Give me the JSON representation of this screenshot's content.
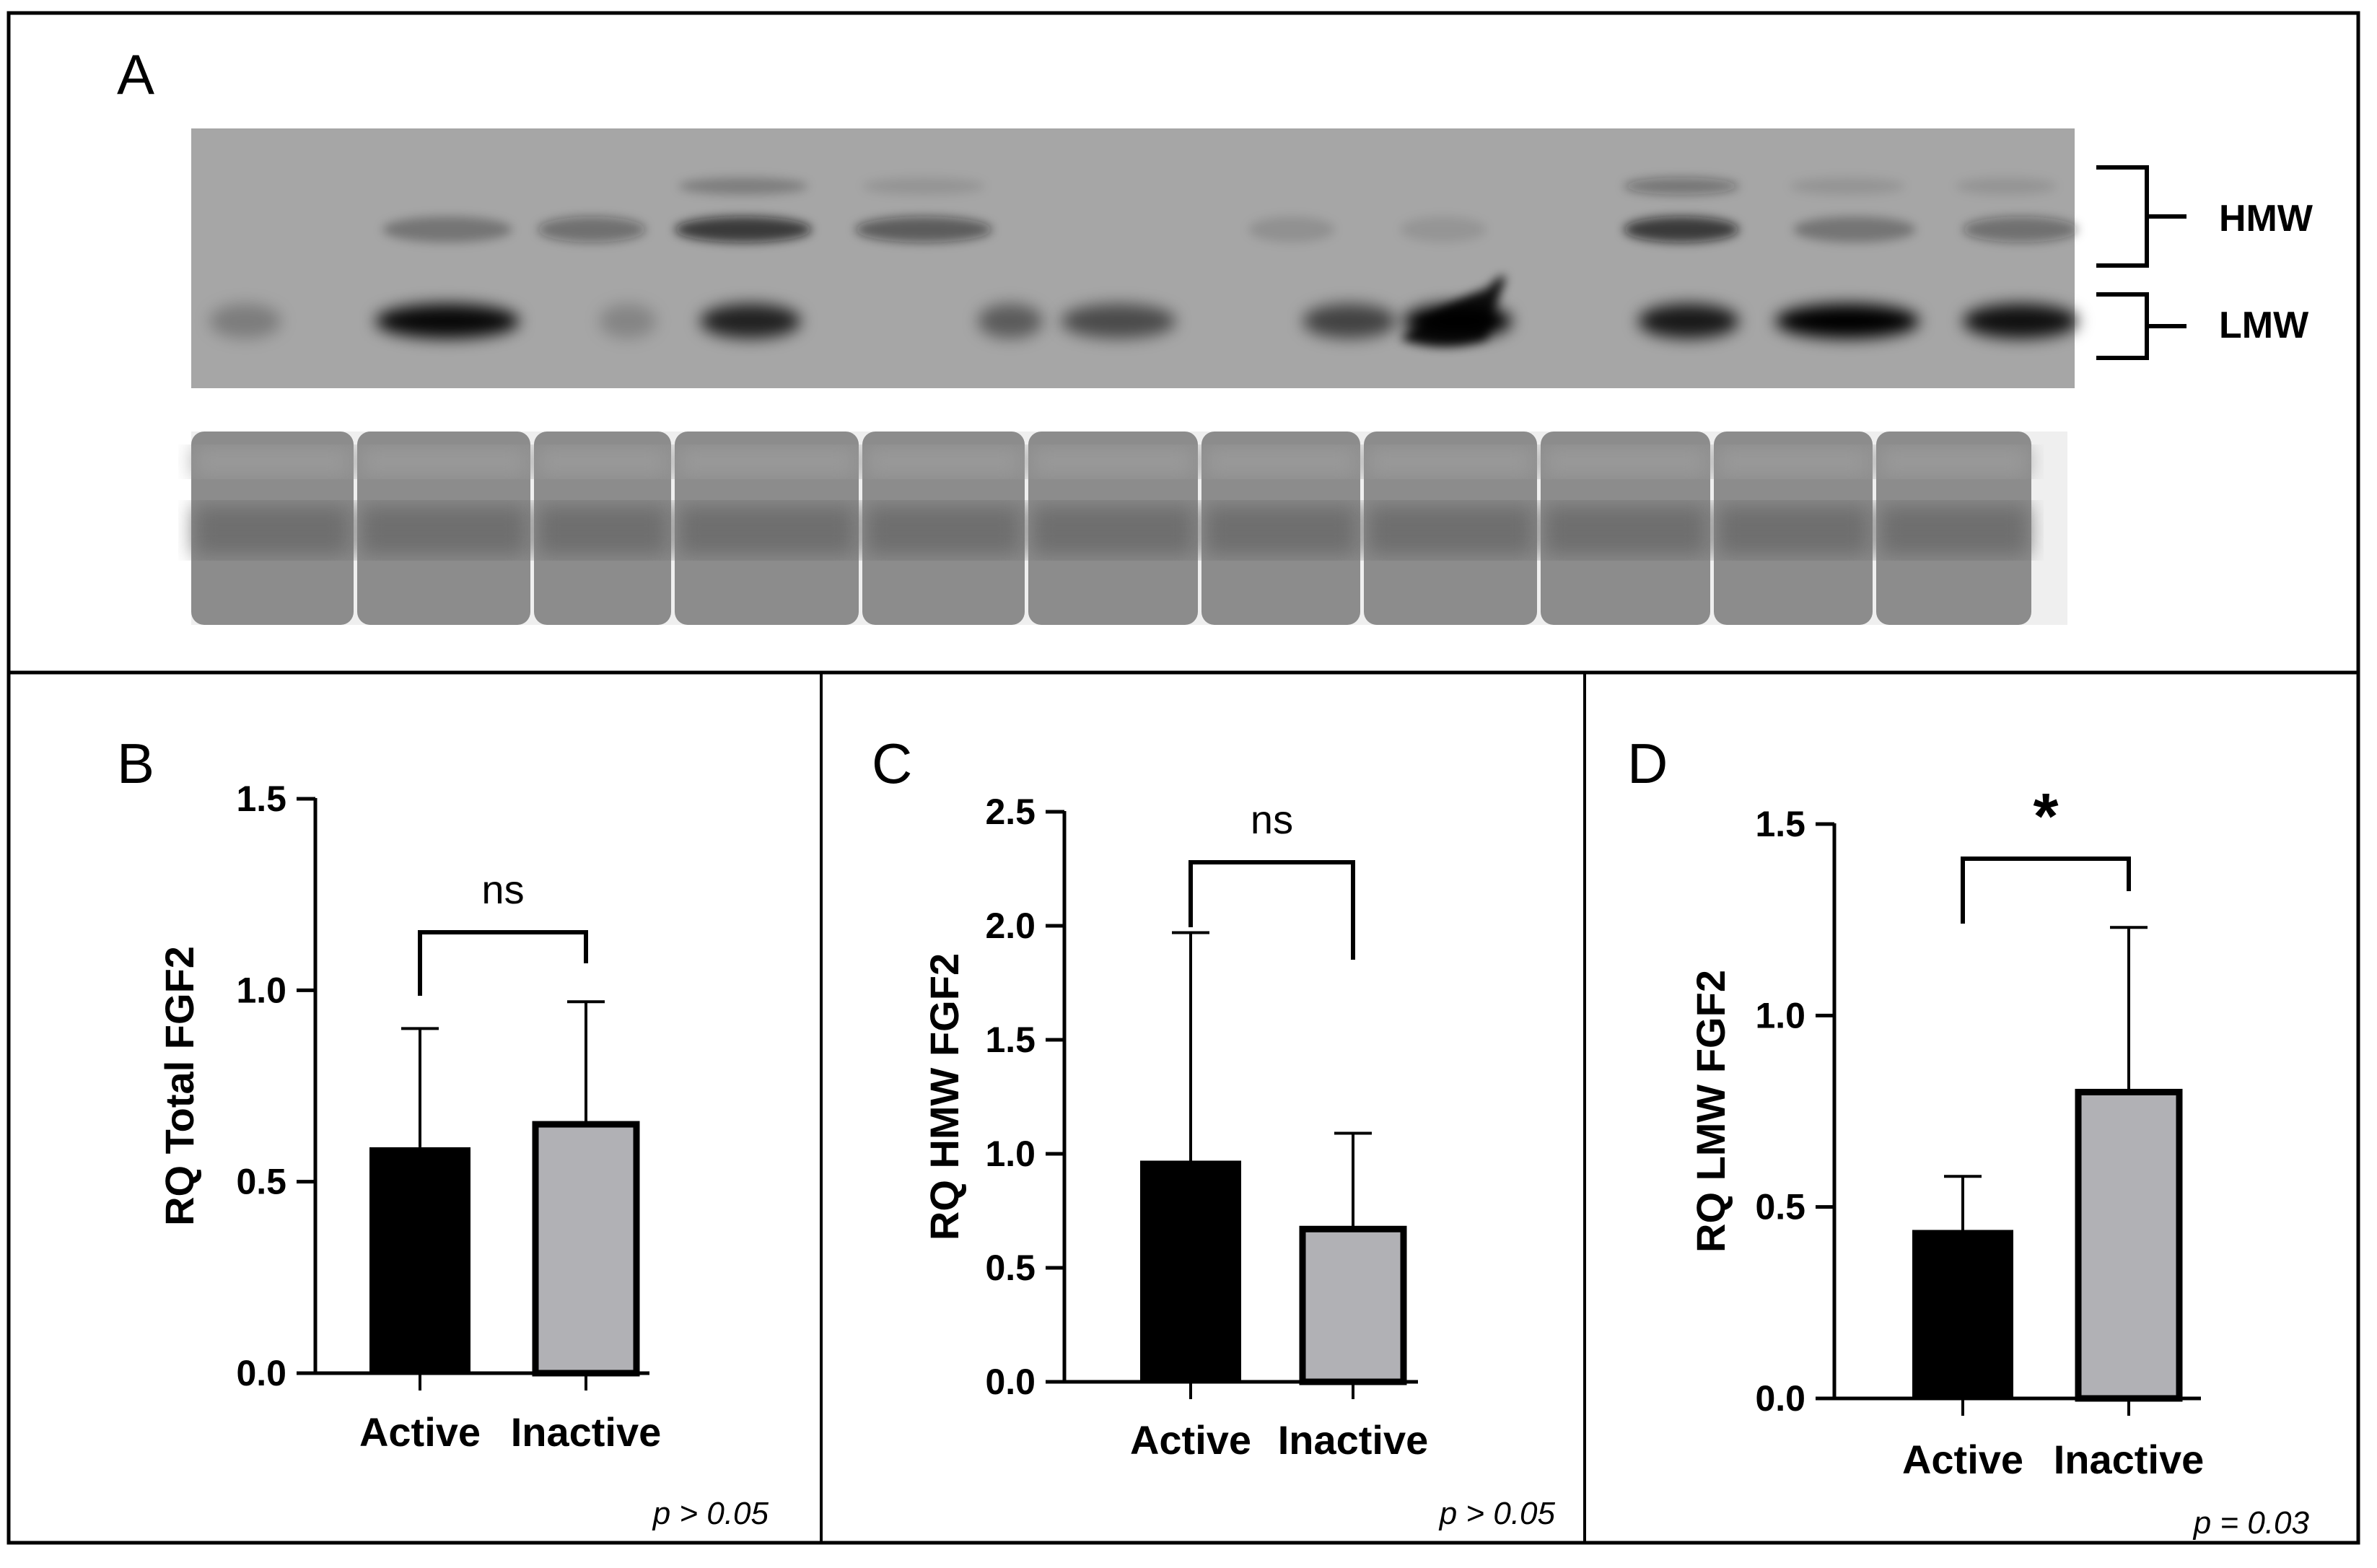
{
  "panel_a": {
    "letter": "A",
    "band_labels": [
      "HMW",
      "LMW"
    ]
  },
  "chart_data": [
    {
      "panel": "B",
      "type": "bar",
      "categories": [
        "Active",
        "Inactive"
      ],
      "values": [
        0.59,
        0.65
      ],
      "errors": [
        0.31,
        0.32
      ],
      "ylabel": "RQ Total FGF2",
      "ylim": [
        0,
        1.5
      ],
      "yticks": [
        "0.0",
        "0.5",
        "1.0",
        "1.5"
      ],
      "significance": "ns",
      "pvalue": "p > 0.05",
      "colors": [
        "#000000",
        "#b1b1b5"
      ]
    },
    {
      "panel": "C",
      "type": "bar",
      "categories": [
        "Active",
        "Inactive"
      ],
      "values": [
        0.97,
        0.67
      ],
      "errors": [
        1.0,
        0.42
      ],
      "ylabel": "RQ HMW FGF2",
      "ylim": [
        0,
        2.5
      ],
      "yticks": [
        "0.0",
        "0.5",
        "1.0",
        "1.5",
        "2.0",
        "2.5"
      ],
      "significance": "ns",
      "pvalue": "p > 0.05",
      "colors": [
        "#000000",
        "#b1b1b5"
      ]
    },
    {
      "panel": "D",
      "type": "bar",
      "categories": [
        "Active",
        "Inactive"
      ],
      "values": [
        0.44,
        0.8
      ],
      "errors": [
        0.14,
        0.43
      ],
      "ylabel": "RQ LMW FGF2",
      "ylim": [
        0,
        1.5
      ],
      "yticks": [
        "0.0",
        "0.5",
        "1.0",
        "1.5"
      ],
      "significance": "*",
      "pvalue": "p = 0.03",
      "colors": [
        "#000000",
        "#b1b1b5"
      ]
    }
  ]
}
